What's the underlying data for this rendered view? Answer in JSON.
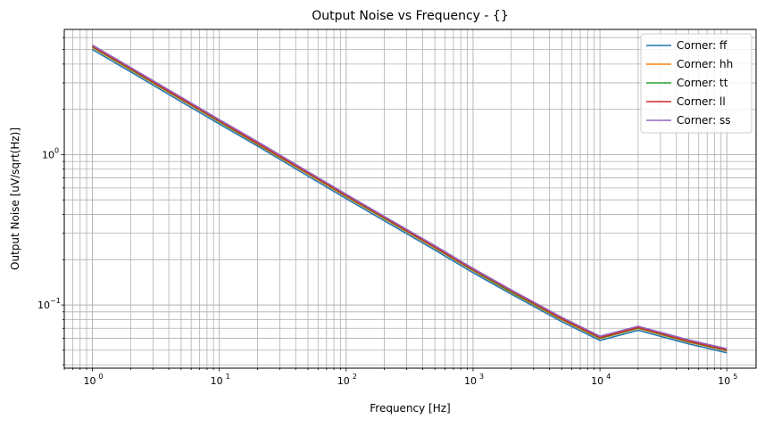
{
  "chart_data": {
    "type": "line",
    "title": "Output Noise vs Frequency - {}",
    "xlabel": "Frequency [Hz]",
    "ylabel": "Output Noise [uV/sqrt(Hz)]",
    "xscale": "log",
    "yscale": "log",
    "xlim": [
      0.6,
      170000
    ],
    "ylim": [
      0.038,
      6.8
    ],
    "grid": "major and minor",
    "legend_position": "top-right",
    "x": [
      1,
      2,
      5,
      10,
      20,
      50,
      100,
      200,
      500,
      1000,
      2000,
      5000,
      10000,
      20000,
      50000,
      100000
    ],
    "series": [
      {
        "name": "Corner: ff",
        "color": "#1f77b4",
        "values": [
          5.0,
          3.55,
          2.25,
          1.6,
          1.14,
          0.72,
          0.51,
          0.363,
          0.232,
          0.164,
          0.118,
          0.0775,
          0.0581,
          0.0679,
          0.0551,
          0.0481
        ]
      },
      {
        "name": "Corner: hh",
        "color": "#ff7f0e",
        "values": [
          5.15,
          3.66,
          2.32,
          1.65,
          1.17,
          0.742,
          0.525,
          0.374,
          0.239,
          0.169,
          0.121,
          0.0797,
          0.0597,
          0.0698,
          0.0566,
          0.0494
        ]
      },
      {
        "name": "Corner: tt",
        "color": "#2ca02c",
        "values": [
          5.2,
          3.69,
          2.34,
          1.66,
          1.18,
          0.749,
          0.53,
          0.377,
          0.241,
          0.17,
          0.122,
          0.0804,
          0.0602,
          0.0703,
          0.057,
          0.0498
        ]
      },
      {
        "name": "Corner: ll",
        "color": "#d62728",
        "values": [
          5.25,
          3.73,
          2.36,
          1.68,
          1.19,
          0.756,
          0.535,
          0.381,
          0.243,
          0.172,
          0.124,
          0.0812,
          0.0608,
          0.0709,
          0.0575,
          0.0502
        ]
      },
      {
        "name": "Corner: ss",
        "color": "#9467bd",
        "values": [
          5.35,
          3.8,
          2.41,
          1.71,
          1.22,
          0.77,
          0.545,
          0.388,
          0.248,
          0.175,
          0.126,
          0.0828,
          0.062,
          0.0722,
          0.0586,
          0.0512
        ]
      }
    ],
    "x_ticks": [
      {
        "value": 1,
        "base": "10",
        "exp": "0"
      },
      {
        "value": 10,
        "base": "10",
        "exp": "1"
      },
      {
        "value": 100,
        "base": "10",
        "exp": "2"
      },
      {
        "value": 1000,
        "base": "10",
        "exp": "3"
      },
      {
        "value": 10000,
        "base": "10",
        "exp": "4"
      },
      {
        "value": 100000,
        "base": "10",
        "exp": "5"
      }
    ],
    "y_ticks": [
      {
        "value": 1,
        "base": "10",
        "exp": "0"
      },
      {
        "value": 0.1,
        "base": "10",
        "exp": "−1"
      }
    ]
  }
}
